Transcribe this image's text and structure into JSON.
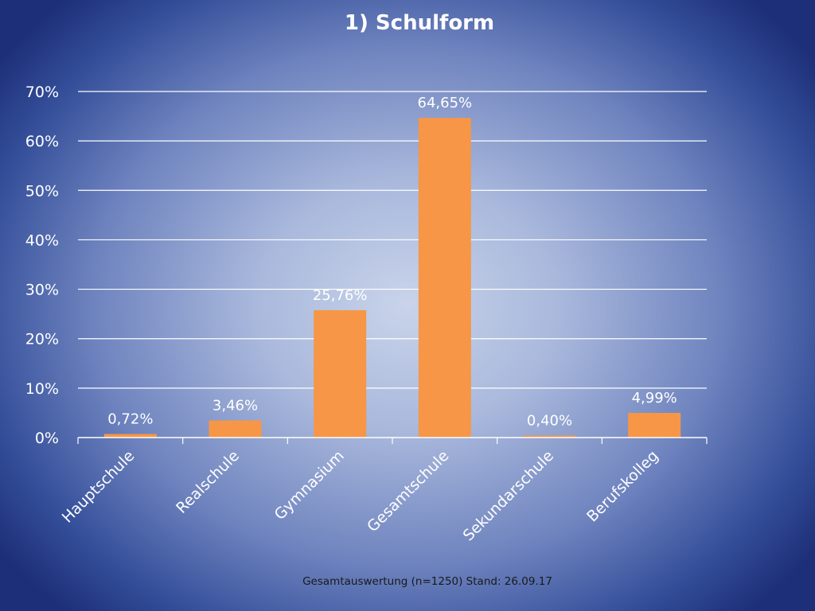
{
  "slide": {
    "title": "1) Schulform",
    "footer": "Gesamtauswertung (n=1250) Stand: 26.09.17"
  },
  "colors": {
    "bar": "#f79646",
    "gridline": "#ffffff",
    "text": "#ffffff"
  },
  "chart_data": {
    "type": "bar",
    "title": "1) Schulform",
    "xlabel": "",
    "ylabel": "",
    "categories": [
      "Hauptschule",
      "Realschule",
      "Gymnasium",
      "Gesamtschule",
      "Sekundarschule",
      "Berufskolleg"
    ],
    "values": [
      0.72,
      3.46,
      25.76,
      64.65,
      0.4,
      4.99
    ],
    "data_labels": [
      "0,72%",
      "3,46%",
      "25,76%",
      "64,65%",
      "0,40%",
      "4,99%"
    ],
    "ylim": [
      0,
      70
    ],
    "yticks": [
      0,
      10,
      20,
      30,
      40,
      50,
      60,
      70
    ],
    "ytick_labels": [
      "0%",
      "10%",
      "20%",
      "30%",
      "40%",
      "50%",
      "60%",
      "70%"
    ],
    "grid": true,
    "legend": "none"
  }
}
